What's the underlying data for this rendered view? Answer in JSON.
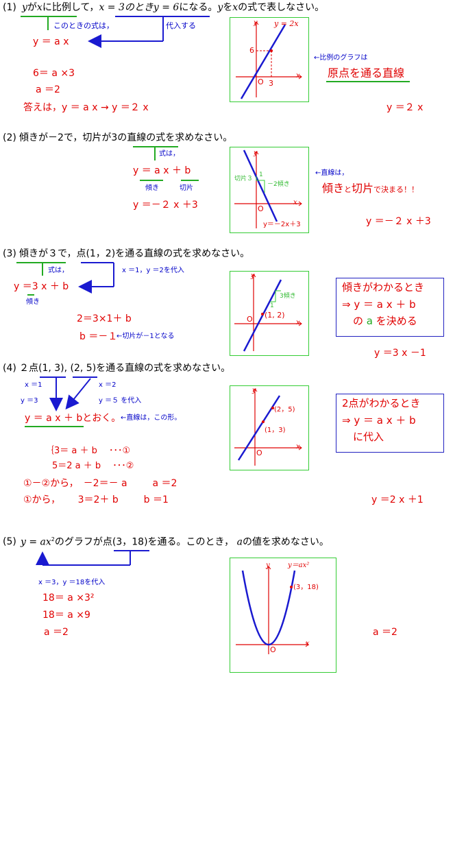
{
  "p1": {
    "num": "(1)",
    "q_y": "y",
    "q_a": "が",
    "q_x": "x",
    "q_b": "に比例して，",
    "q_cond": "x = 3のときy = 6",
    "q_c": "になる。",
    "q_y2": "y",
    "q_d": "を",
    "q_x2": "x",
    "q_e": "の式で表しなさい。",
    "note_formula": "このときの式は，",
    "note_subst": "代入する",
    "formula": "y ＝ a  x",
    "step1": "6＝ a ×3",
    "step2": "a ＝2",
    "answer_line": "答えは，y ＝ a  x → y ＝２ x",
    "graph": {
      "y": "y",
      "x": "x",
      "o": "O",
      "label": "y = 2x",
      "tick_y": "6",
      "tick_x": "3"
    },
    "side_note": "←比例のグラフは",
    "side_big": "原点を通る直線",
    "final": "y ＝２ x"
  },
  "p2": {
    "num": "(2)",
    "question": "傾きが－2で，切片が3の直線の式を求めなさい。",
    "note": "式は，",
    "formula": "y ＝ a  x ＋ b",
    "lbl_slope": "傾き",
    "lbl_int": "切片",
    "result": "y ＝－２ x ＋3",
    "graph": {
      "y": "y",
      "x": "x",
      "o": "O",
      "seg": "切片３",
      "one": "1",
      "slope": "－2傾き",
      "label": "y＝－2x＋3"
    },
    "side_note": "←直線は，",
    "side_big1": "傾き",
    "side_mid": "と",
    "side_big2": "切片",
    "side_end": "で決まる！！",
    "final": "y ＝－２ x ＋3"
  },
  "p3": {
    "num": "(3)",
    "question": "傾きが３で，点(1，2)を通る直線の式を求めなさい。",
    "note1": "式は，",
    "note2": "x ＝1，y ＝2を代入",
    "formula": "y ＝3 x ＋ b",
    "lbl_slope": "傾き",
    "step1": "2＝3×1＋ b",
    "step2": "b ＝－１",
    "step2_note": "←切片が－1となる",
    "graph": {
      "y": "y",
      "x": "x",
      "o": "O",
      "slope": "3傾き",
      "one": "1",
      "pt": "(1, 2)"
    },
    "box1": "傾きがわかるとき",
    "box2": "⇒ y ＝ a  x ＋ b",
    "box3a": "の ",
    "box3b": "a",
    "box3c": " を決める",
    "final": "y ＝3 x －1"
  },
  "p4": {
    "num": "(4)",
    "question": "２点(1, 3), (2, 5)を通る直線の式を求めなさい。",
    "n_x1": "x ＝1",
    "n_x2": "x ＝2",
    "n_y1": "y ＝3",
    "n_y2": "y ＝５ を代入",
    "formula": "y ＝ a  x ＋ b",
    "formula_end": "とおく。",
    "formula_note": "←直線は，この形。",
    "eq1": "3＝ a ＋ b 　･･･①",
    "eq2": "5＝2 a ＋ b 　･･･②",
    "step1": "①－②から，　－2＝－ a 　　 a ＝2",
    "step2": "①から，　　 3＝2＋ b 　　 b ＝1",
    "graph": {
      "y": "y",
      "x": "x",
      "o": "O",
      "pt1": "(2，5)",
      "pt2": "(1，3)"
    },
    "box1": "2点がわかるとき",
    "box2": "⇒ y ＝ a  x ＋ b",
    "box3": "に代入",
    "final": "y ＝2 x ＋1"
  },
  "p5": {
    "num": "(5)",
    "q_a": "y = ax",
    "q_sup": "2",
    "q_b": "のグラフが点(3，18)を通る。このとき，",
    "q_c": "a",
    "q_d": "の値を求めなさい。",
    "note": "x ＝3，y ＝18を代入",
    "step1": "18＝ a ×3²",
    "step2": "18＝ a ×9",
    "step3": "a ＝2",
    "graph": {
      "y": "y",
      "x": "x",
      "o": "O",
      "label": "y＝ax²",
      "pt": "(3，18)"
    },
    "final": "a ＝2"
  }
}
